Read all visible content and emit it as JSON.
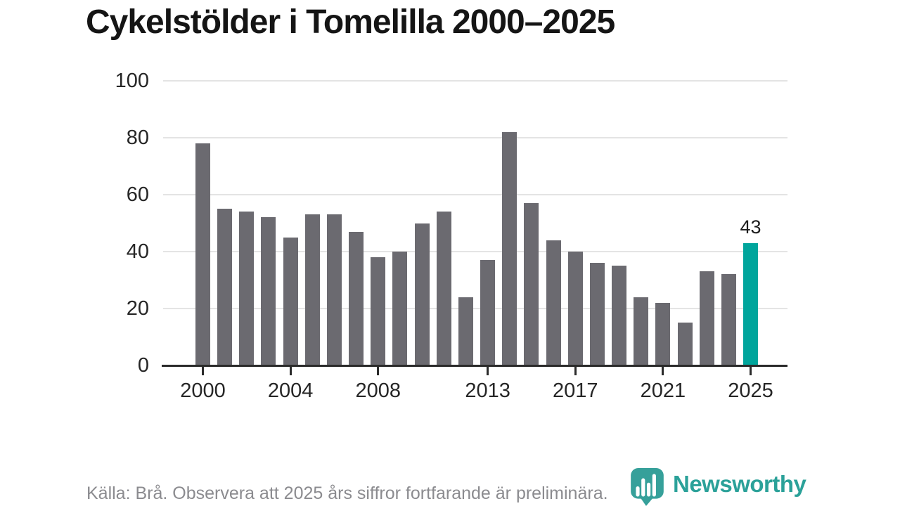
{
  "title": "Cykelstölder i Tomelilla 2000–2025",
  "chart_data": {
    "type": "bar",
    "title": "Cykelstölder i Tomelilla 2000–2025",
    "categories": [
      2000,
      2001,
      2002,
      2003,
      2004,
      2005,
      2006,
      2007,
      2008,
      2009,
      2010,
      2011,
      2012,
      2013,
      2014,
      2015,
      2016,
      2017,
      2018,
      2019,
      2020,
      2021,
      2022,
      2023,
      2024,
      2025
    ],
    "values": [
      78,
      55,
      54,
      52,
      45,
      53,
      53,
      47,
      38,
      40,
      50,
      54,
      24,
      37,
      82,
      57,
      44,
      40,
      36,
      35,
      24,
      22,
      15,
      33,
      32,
      43
    ],
    "highlight_index": 25,
    "highlight_label": "43",
    "xlabel": "",
    "ylabel": "",
    "ylim": [
      0,
      100
    ],
    "y_ticks": [
      0,
      20,
      40,
      60,
      80,
      100
    ],
    "x_tick_years": [
      2000,
      2004,
      2008,
      2013,
      2017,
      2021,
      2025
    ],
    "grid": true,
    "legend": "none",
    "bar_color": "#6b6a70",
    "highlight_color": "#00a59c"
  },
  "footer": {
    "source_note": "Källa: Brå. Observera att 2025 års siffror fortfarande är preliminära."
  },
  "branding": {
    "logo_text": "Newsworthy",
    "logo_color": "#2ba199",
    "logo_icon": "bar-chart-bubble-icon"
  }
}
